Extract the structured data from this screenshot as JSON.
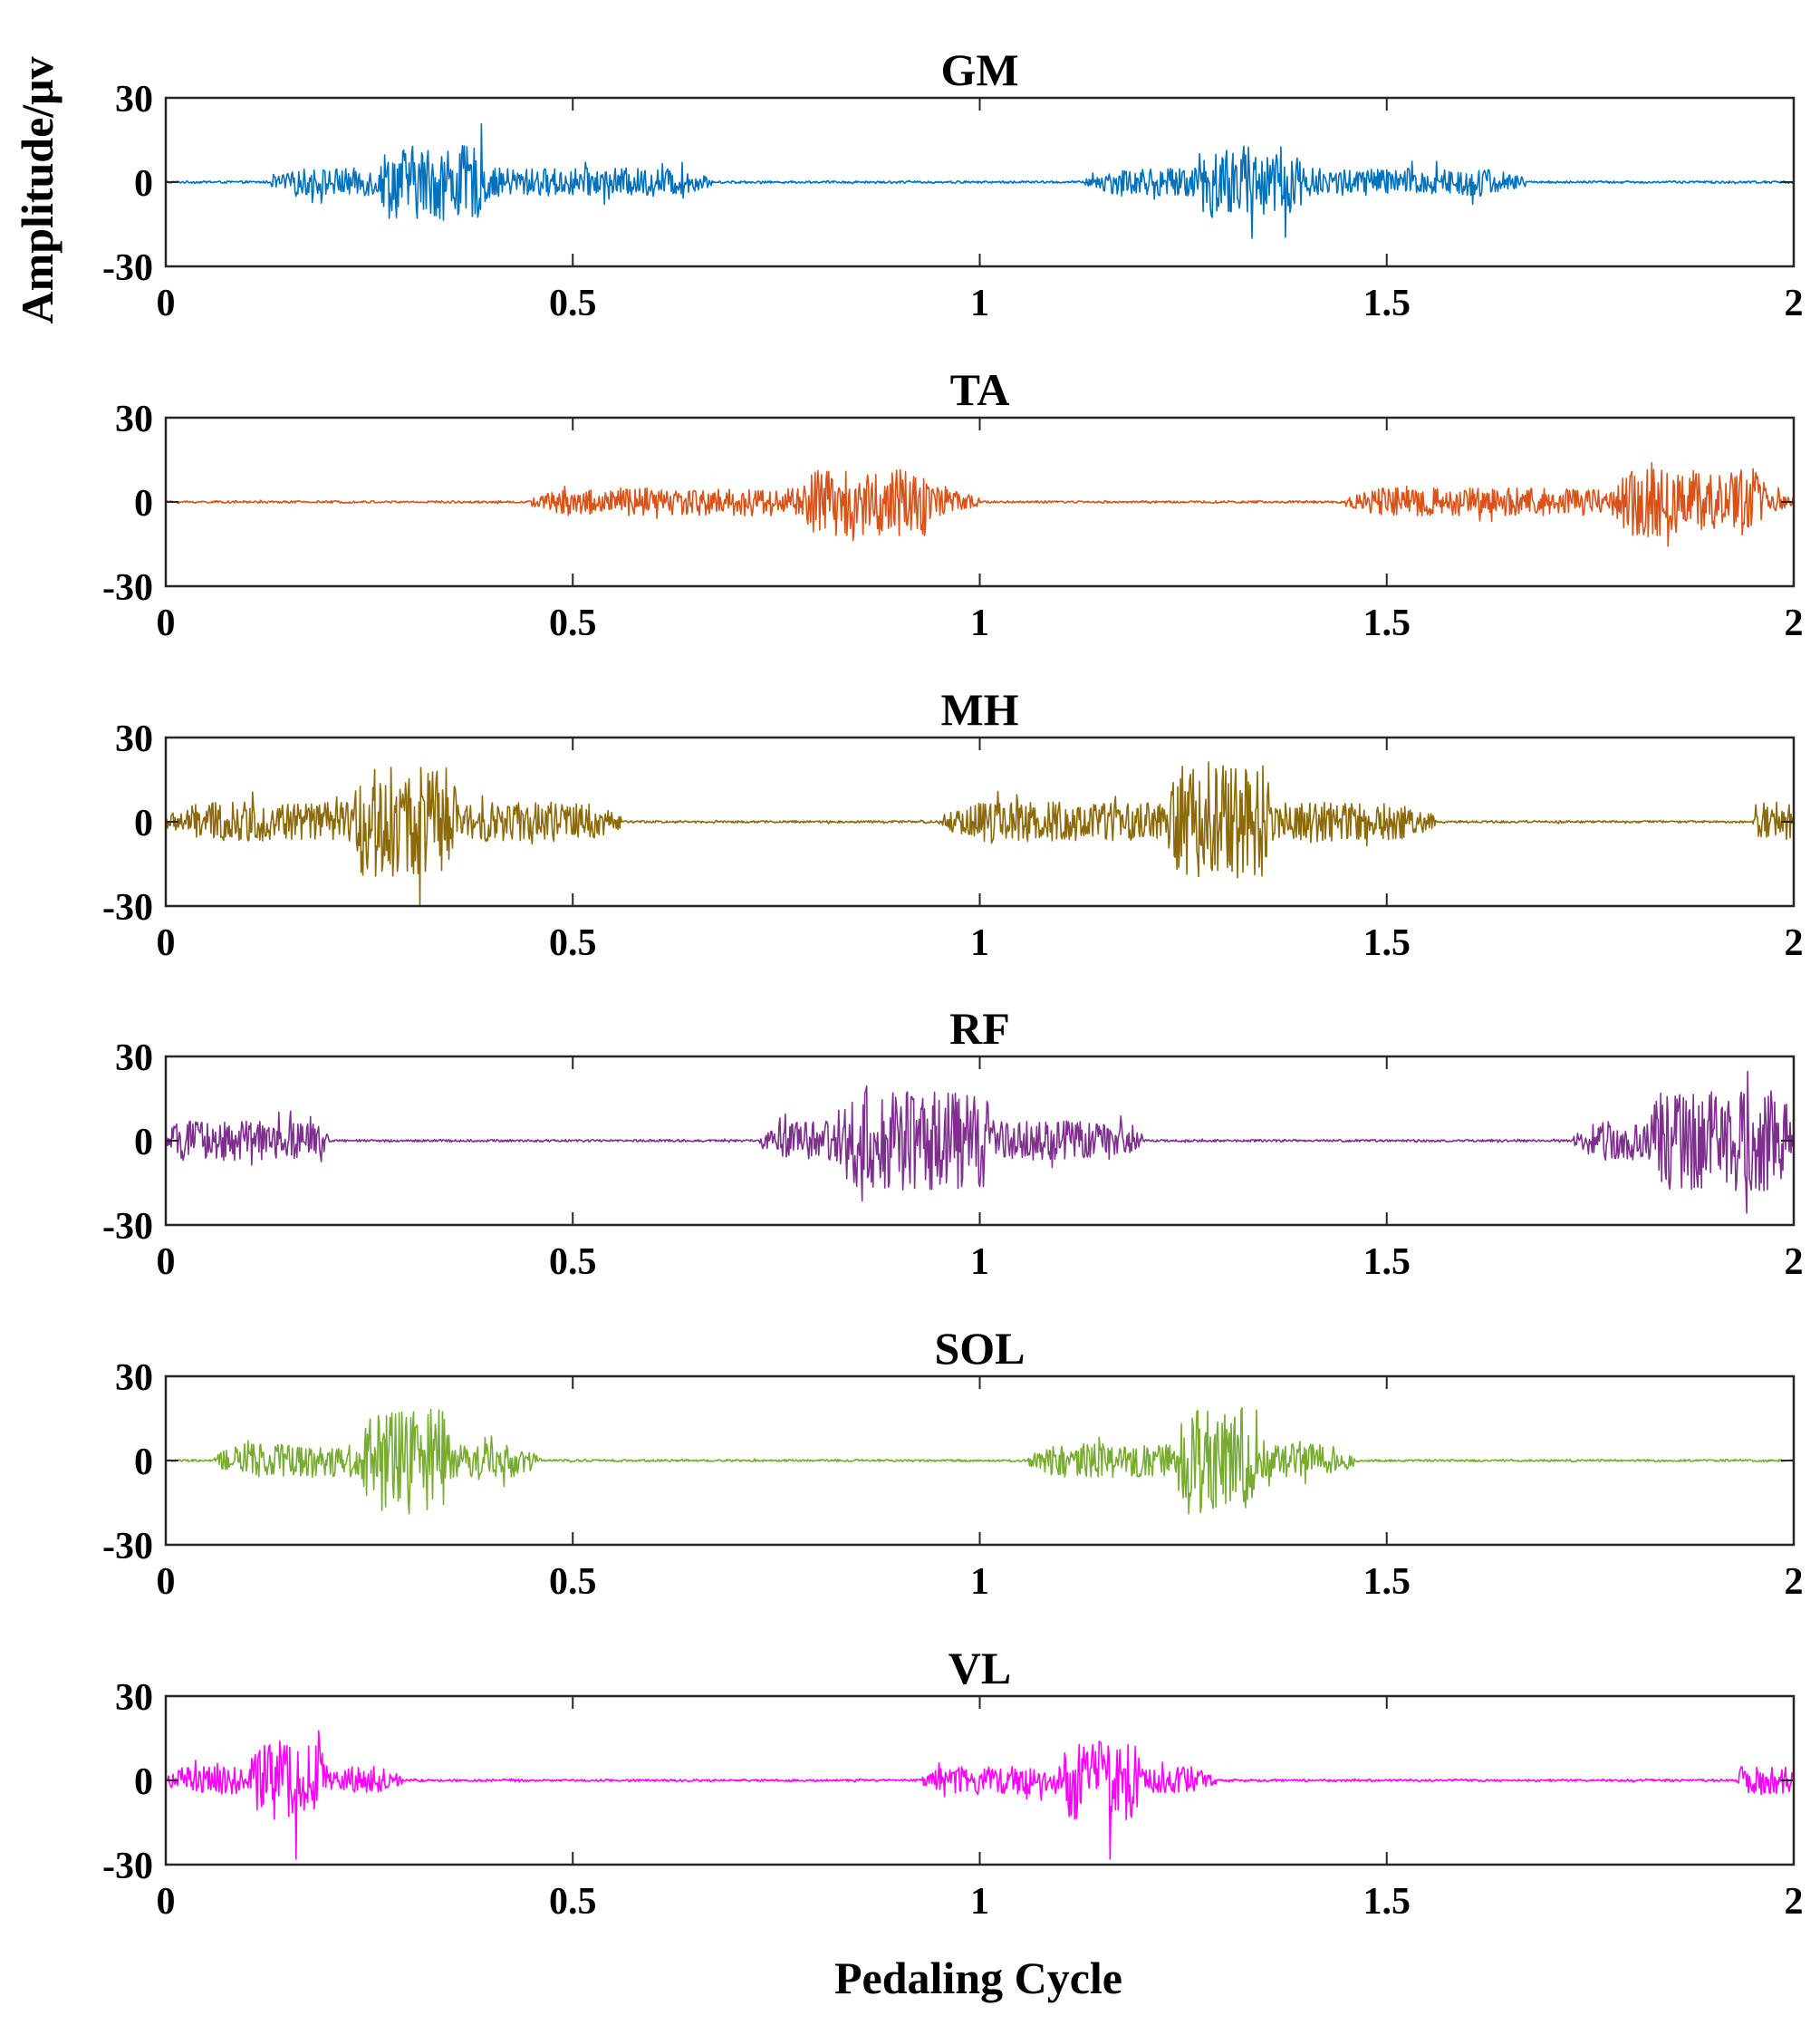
{
  "figure": {
    "xlabel": "Pedaling Cycle",
    "ylabel": "Amplitude/μv"
  },
  "chart_data": [
    {
      "type": "line",
      "title": "GM",
      "color": "#0072BD",
      "xlim": [
        0,
        2
      ],
      "ylim": [
        -30,
        30
      ],
      "xticks": [
        "0",
        "0.5",
        "1",
        "1.5",
        "2"
      ],
      "yticks": [
        "30",
        "0",
        "-30"
      ],
      "bursts": [
        {
          "start": 0.13,
          "end": 0.67,
          "amp": 5
        },
        {
          "start": 0.26,
          "end": 0.4,
          "amp": 13
        },
        {
          "start": 1.13,
          "end": 1.67,
          "amp": 5
        },
        {
          "start": 1.26,
          "end": 1.4,
          "amp": 13
        }
      ],
      "baseline_amp": 0.4
    },
    {
      "type": "line",
      "title": "TA",
      "color": "#D95319",
      "xlim": [
        0,
        2
      ],
      "ylim": [
        -30,
        30
      ],
      "xticks": [
        "0",
        "0.5",
        "1",
        "1.5",
        "2"
      ],
      "yticks": [
        "30",
        "0",
        "-30"
      ],
      "bursts": [
        {
          "start": 0.45,
          "end": 1.0,
          "amp": 5
        },
        {
          "start": 0.78,
          "end": 0.95,
          "amp": 12
        },
        {
          "start": 1.45,
          "end": 2.0,
          "amp": 5
        },
        {
          "start": 1.78,
          "end": 1.97,
          "amp": 12
        }
      ],
      "baseline_amp": 0.4
    },
    {
      "type": "line",
      "title": "MH",
      "color": "#8C6A0A",
      "xlim": [
        0,
        2
      ],
      "ylim": [
        -30,
        30
      ],
      "xticks": [
        "0",
        "0.5",
        "1",
        "1.5",
        "2"
      ],
      "yticks": [
        "30",
        "0",
        "-30"
      ],
      "bursts": [
        {
          "start": 0.0,
          "end": 0.56,
          "amp": 7
        },
        {
          "start": 0.23,
          "end": 0.36,
          "amp": 20
        },
        {
          "start": 0.95,
          "end": 1.56,
          "amp": 7
        },
        {
          "start": 1.23,
          "end": 1.36,
          "amp": 20
        },
        {
          "start": 1.95,
          "end": 2.0,
          "amp": 7
        }
      ],
      "baseline_amp": 0.4
    },
    {
      "type": "line",
      "title": "RF",
      "color": "#7E2F8E",
      "xlim": [
        0,
        2
      ],
      "ylim": [
        -30,
        30
      ],
      "xticks": [
        "0",
        "0.5",
        "1",
        "1.5",
        "2"
      ],
      "yticks": [
        "30",
        "0",
        "-30"
      ],
      "bursts": [
        {
          "start": 0.0,
          "end": 0.2,
          "amp": 7
        },
        {
          "start": 0.73,
          "end": 1.2,
          "amp": 7
        },
        {
          "start": 0.82,
          "end": 1.02,
          "amp": 18
        },
        {
          "start": 1.73,
          "end": 2.0,
          "amp": 7
        },
        {
          "start": 1.82,
          "end": 2.0,
          "amp": 18
        }
      ],
      "baseline_amp": 0.4
    },
    {
      "type": "line",
      "title": "SOL",
      "color": "#77AC30",
      "xlim": [
        0,
        2
      ],
      "ylim": [
        -30,
        30
      ],
      "xticks": [
        "0",
        "0.5",
        "1",
        "1.5",
        "2"
      ],
      "yticks": [
        "30",
        "0",
        "-30"
      ],
      "bursts": [
        {
          "start": 0.06,
          "end": 0.46,
          "amp": 6
        },
        {
          "start": 0.24,
          "end": 0.35,
          "amp": 19
        },
        {
          "start": 1.06,
          "end": 1.46,
          "amp": 6
        },
        {
          "start": 1.24,
          "end": 1.35,
          "amp": 19
        }
      ],
      "baseline_amp": 0.4
    },
    {
      "type": "line",
      "title": "VL",
      "color": "#FF00FF",
      "xlim": [
        0,
        2
      ],
      "ylim": [
        -30,
        30
      ],
      "xticks": [
        "0",
        "0.5",
        "1",
        "1.5",
        "2"
      ],
      "yticks": [
        "30",
        "0",
        "-30"
      ],
      "bursts": [
        {
          "start": 0.0,
          "end": 0.29,
          "amp": 5
        },
        {
          "start": 0.1,
          "end": 0.2,
          "amp": 14
        },
        {
          "start": 0.93,
          "end": 1.29,
          "amp": 5
        },
        {
          "start": 1.1,
          "end": 1.2,
          "amp": 14
        },
        {
          "start": 1.93,
          "end": 2.0,
          "amp": 5
        }
      ],
      "spikes": [
        {
          "x": 0.16,
          "value": -28
        },
        {
          "x": 1.16,
          "value": -28
        }
      ],
      "baseline_amp": 0.4
    }
  ]
}
